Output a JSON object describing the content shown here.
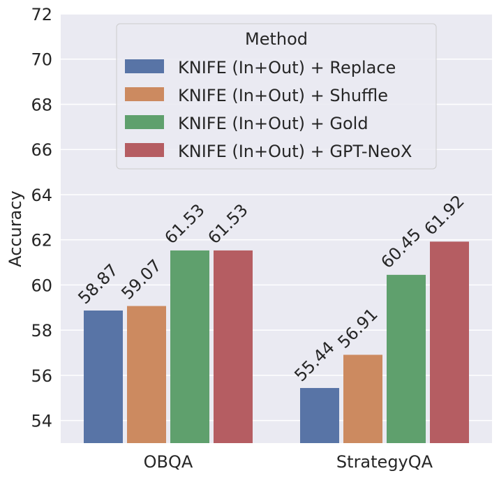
{
  "chart_data": {
    "type": "bar",
    "categories": [
      "OBQA",
      "StrategyQA"
    ],
    "series": [
      {
        "name": "KNIFE (In+Out) + Replace",
        "color": "#5874a6",
        "values": [
          58.87,
          55.44
        ]
      },
      {
        "name": "KNIFE (In+Out) + Shuffle",
        "color": "#cc8a60",
        "values": [
          59.07,
          56.91
        ]
      },
      {
        "name": "KNIFE (In+Out) + Gold",
        "color": "#5fa06d",
        "values": [
          61.53,
          60.45
        ]
      },
      {
        "name": "KNIFE (In+Out) + GPT-NeoX",
        "color": "#b55d62",
        "values": [
          61.53,
          61.92
        ]
      }
    ],
    "value_labels": [
      [
        "58.87",
        "55.44"
      ],
      [
        "59.07",
        "56.91"
      ],
      [
        "61.53",
        "60.45"
      ],
      [
        "61.53",
        "61.92"
      ]
    ],
    "xlabel": "",
    "ylabel": "Accuracy",
    "ylim": [
      53,
      72
    ],
    "yticks": [
      54,
      56,
      58,
      60,
      62,
      64,
      66,
      68,
      70,
      72
    ],
    "ytick_labels": [
      "54",
      "56",
      "58",
      "60",
      "62",
      "64",
      "66",
      "68",
      "70",
      "72"
    ],
    "legend_title": "Method",
    "legend_position": "top-center",
    "grid": true,
    "background_color": "#eaeaf2"
  }
}
